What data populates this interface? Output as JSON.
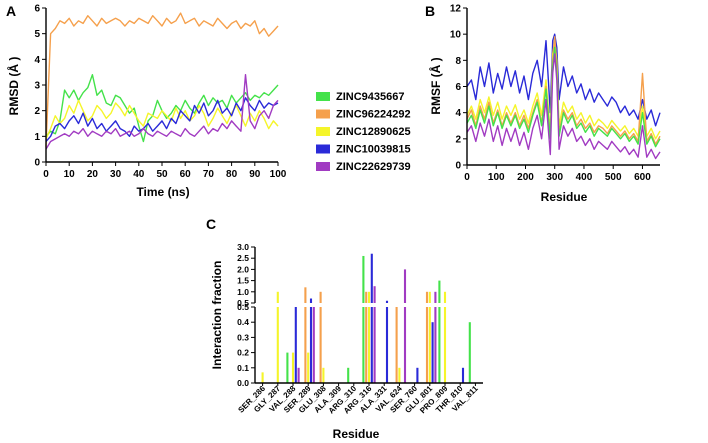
{
  "colors": {
    "ZINC9435667": "#44e24a",
    "ZINC96224292": "#f5a04c",
    "ZINC12890625": "#f5f52a",
    "ZINC10039815": "#2a2ad8",
    "ZINC22629739": "#a13bc2"
  },
  "chart_data": [
    {
      "panel": "A",
      "type": "line",
      "xlabel": "Time (ns)",
      "ylabel": "RMSD (Å )",
      "xlim": [
        0,
        100
      ],
      "ylim": [
        0,
        6
      ],
      "xticks": [
        0,
        10,
        20,
        30,
        40,
        50,
        60,
        70,
        80,
        90,
        100
      ],
      "yticks": [
        0,
        1,
        2,
        3,
        4,
        5,
        6
      ],
      "x": [
        0,
        2,
        4,
        6,
        8,
        10,
        12,
        14,
        16,
        18,
        20,
        22,
        24,
        26,
        28,
        30,
        32,
        34,
        36,
        38,
        40,
        42,
        44,
        46,
        48,
        50,
        52,
        54,
        56,
        58,
        60,
        62,
        64,
        66,
        68,
        70,
        72,
        74,
        76,
        78,
        80,
        82,
        84,
        86,
        88,
        90,
        92,
        94,
        96,
        98,
        100
      ],
      "series": [
        {
          "name": "ZINC96224292",
          "values": [
            0.6,
            5.0,
            5.2,
            5.5,
            5.4,
            5.6,
            5.3,
            5.5,
            5.4,
            5.7,
            5.5,
            5.3,
            5.6,
            5.4,
            5.5,
            5.6,
            5.5,
            5.3,
            5.5,
            5.4,
            5.6,
            5.5,
            5.4,
            5.7,
            5.5,
            5.3,
            5.6,
            5.4,
            5.5,
            5.8,
            5.4,
            5.5,
            5.6,
            5.3,
            5.5,
            5.4,
            5.3,
            5.6,
            5.4,
            5.2,
            5.4,
            5.5,
            5.2,
            5.4,
            5.3,
            5.5,
            5.0,
            5.2,
            4.9,
            5.1,
            5.3
          ]
        },
        {
          "name": "ZINC9435667",
          "values": [
            1.0,
            1.2,
            1.1,
            1.6,
            2.8,
            2.5,
            2.8,
            2.4,
            2.7,
            2.9,
            3.4,
            2.6,
            2.8,
            2.3,
            2.2,
            2.6,
            2.5,
            2.2,
            1.9,
            2.1,
            1.4,
            0.8,
            1.6,
            1.8,
            2.4,
            2.0,
            1.7,
            1.9,
            2.2,
            2.0,
            2.4,
            2.1,
            1.9,
            2.3,
            2.6,
            2.2,
            2.5,
            2.3,
            2.4,
            2.1,
            2.6,
            2.3,
            2.5,
            2.7,
            2.4,
            2.6,
            2.5,
            2.7,
            2.6,
            2.8,
            3.0
          ]
        },
        {
          "name": "ZINC12890625",
          "values": [
            0.9,
            1.3,
            1.8,
            1.5,
            1.7,
            2.2,
            1.9,
            2.4,
            2.0,
            1.6,
            1.8,
            2.2,
            2.0,
            1.7,
            1.9,
            2.3,
            2.1,
            1.8,
            2.2,
            1.9,
            1.6,
            1.4,
            1.9,
            1.8,
            1.7,
            2.0,
            1.8,
            1.6,
            2.1,
            1.7,
            2.0,
            1.6,
            1.8,
            2.2,
            1.9,
            1.4,
            1.7,
            2.1,
            1.8,
            1.5,
            1.9,
            2.2,
            1.8,
            1.4,
            1.9,
            1.6,
            2.0,
            1.7,
            1.3,
            1.6,
            1.4
          ]
        },
        {
          "name": "ZINC10039815",
          "values": [
            0.8,
            1.0,
            1.4,
            1.5,
            1.3,
            1.6,
            1.8,
            1.5,
            1.9,
            1.4,
            1.7,
            1.3,
            1.5,
            1.2,
            1.4,
            1.6,
            1.3,
            1.2,
            1.0,
            1.4,
            1.2,
            1.3,
            1.5,
            1.2,
            1.4,
            1.6,
            1.3,
            1.7,
            1.5,
            2.0,
            1.8,
            1.6,
            2.2,
            1.9,
            2.3,
            1.8,
            2.0,
            2.4,
            1.9,
            2.1,
            1.8,
            2.3,
            2.0,
            2.5,
            2.2,
            2.0,
            2.4,
            2.1,
            2.3,
            2.2,
            2.3
          ]
        },
        {
          "name": "ZINC22629739",
          "values": [
            0.5,
            0.8,
            0.9,
            1.0,
            1.1,
            1.0,
            1.2,
            1.1,
            1.3,
            1.0,
            1.2,
            1.1,
            1.0,
            1.2,
            1.1,
            1.3,
            1.0,
            1.1,
            1.2,
            1.0,
            1.1,
            1.3,
            1.1,
            1.0,
            1.2,
            1.1,
            1.0,
            1.2,
            1.1,
            1.0,
            1.3,
            1.1,
            1.0,
            1.2,
            1.4,
            1.1,
            1.3,
            1.2,
            1.5,
            1.3,
            1.6,
            1.4,
            1.2,
            3.4,
            1.6,
            1.3,
            1.8,
            2.0,
            1.7,
            2.2,
            2.4
          ]
        }
      ]
    },
    {
      "panel": "B",
      "type": "line",
      "xlabel": "Residue",
      "ylabel": "RMSF (Å )",
      "xlim": [
        0,
        660
      ],
      "ylim": [
        0,
        12
      ],
      "xticks": [
        0,
        100,
        200,
        300,
        400,
        500,
        600
      ],
      "yticks": [
        0,
        2,
        4,
        6,
        8,
        10,
        12
      ],
      "x": [
        0,
        15,
        30,
        45,
        60,
        75,
        90,
        105,
        120,
        135,
        150,
        165,
        180,
        195,
        210,
        225,
        240,
        255,
        270,
        285,
        293,
        300,
        307,
        315,
        330,
        345,
        360,
        375,
        390,
        405,
        420,
        435,
        450,
        465,
        480,
        495,
        510,
        525,
        540,
        555,
        570,
        585,
        600,
        615,
        630,
        645,
        660
      ],
      "series": [
        {
          "name": "ZINC10039815",
          "values": [
            6.0,
            6.5,
            5.0,
            7.5,
            6.0,
            7.8,
            5.5,
            7.0,
            5.8,
            7.5,
            6.0,
            7.2,
            5.5,
            6.8,
            5.0,
            7.0,
            8.0,
            6.0,
            9.5,
            4.0,
            9.5,
            10.0,
            9.0,
            5.0,
            7.5,
            6.0,
            6.8,
            5.5,
            6.2,
            5.0,
            5.8,
            4.8,
            5.5,
            5.0,
            4.5,
            5.2,
            4.8,
            4.0,
            4.5,
            3.8,
            4.2,
            3.5,
            5.0,
            3.5,
            4.2,
            3.0,
            4.0
          ]
        },
        {
          "name": "ZINC12890625",
          "values": [
            3.8,
            4.5,
            3.5,
            5.0,
            4.0,
            5.2,
            3.8,
            4.8,
            3.5,
            4.5,
            3.8,
            4.6,
            3.5,
            4.2,
            3.2,
            4.5,
            5.5,
            3.8,
            6.5,
            2.5,
            8.5,
            9.5,
            8.0,
            3.0,
            4.8,
            4.0,
            4.5,
            3.5,
            4.0,
            3.2,
            3.8,
            3.0,
            3.5,
            3.2,
            2.8,
            3.4,
            3.0,
            2.6,
            3.0,
            2.4,
            2.8,
            2.2,
            4.5,
            2.2,
            2.8,
            2.0,
            2.6
          ]
        },
        {
          "name": "ZINC96224292",
          "values": [
            3.5,
            4.2,
            3.0,
            4.5,
            3.5,
            4.8,
            3.2,
            4.2,
            3.0,
            4.0,
            3.2,
            4.0,
            3.0,
            3.8,
            2.8,
            4.0,
            5.0,
            3.2,
            6.0,
            2.2,
            8.0,
            9.8,
            7.5,
            2.5,
            4.2,
            3.5,
            4.0,
            3.0,
            3.5,
            2.8,
            3.2,
            2.5,
            3.0,
            2.8,
            2.4,
            3.0,
            2.6,
            2.2,
            2.6,
            2.0,
            2.4,
            1.8,
            7.0,
            1.8,
            2.4,
            1.6,
            2.2
          ]
        },
        {
          "name": "ZINC9435667",
          "values": [
            3.2,
            3.8,
            2.8,
            4.2,
            3.2,
            4.5,
            3.0,
            4.0,
            2.8,
            3.8,
            3.0,
            3.8,
            2.8,
            3.5,
            2.5,
            3.8,
            4.8,
            3.0,
            5.8,
            2.0,
            7.5,
            9.0,
            7.0,
            2.2,
            4.0,
            3.2,
            3.8,
            2.8,
            3.2,
            2.5,
            3.0,
            2.2,
            2.8,
            2.5,
            2.2,
            2.8,
            2.4,
            2.0,
            2.4,
            1.8,
            2.2,
            1.6,
            4.0,
            1.6,
            2.2,
            1.4,
            2.0
          ]
        },
        {
          "name": "ZINC22629739",
          "values": [
            2.5,
            3.0,
            1.8,
            3.2,
            2.2,
            3.5,
            1.8,
            3.0,
            1.5,
            2.8,
            1.8,
            2.8,
            1.5,
            2.5,
            1.2,
            2.8,
            3.8,
            2.0,
            5.0,
            0.8,
            7.0,
            8.5,
            6.5,
            1.2,
            3.0,
            2.2,
            2.8,
            1.8,
            2.2,
            1.5,
            2.0,
            1.2,
            1.8,
            1.5,
            1.2,
            1.8,
            1.4,
            1.0,
            1.4,
            0.8,
            1.2,
            0.6,
            3.0,
            0.6,
            1.2,
            0.5,
            1.0
          ]
        }
      ]
    },
    {
      "panel": "C",
      "type": "bar",
      "xlabel": "Residue",
      "ylabel": "Interaction fraction",
      "axis_break": "between 0.5 and 0.5 (broken y axis)",
      "yticks_upper": [
        0.5,
        1.0,
        1.5,
        2.0,
        2.5,
        3.0
      ],
      "yticks_lower": [
        0.0,
        0.1,
        0.2,
        0.3,
        0.4,
        0.5
      ],
      "categories": [
        "SER_286",
        "GLY_287",
        "VAL_288",
        "SER_289",
        "GLU_308",
        "ALA_309",
        "ARG_310",
        "ARG_316",
        "ALA_331",
        "VAL_624",
        "SER_760",
        "GLU_801",
        "PRO_809",
        "THR_810",
        "VAL_811"
      ],
      "series": [
        {
          "name": "ZINC9435667",
          "values": [
            0,
            0,
            0.2,
            0,
            0,
            0,
            0.1,
            2.6,
            0,
            0,
            0,
            0,
            1.5,
            0,
            0.4
          ]
        },
        {
          "name": "ZINC96224292",
          "values": [
            0,
            0,
            0,
            1.2,
            1.0,
            0,
            0,
            1.0,
            0,
            0.5,
            0,
            1.0,
            0,
            0,
            0
          ]
        },
        {
          "name": "ZINC12890625",
          "values": [
            0.07,
            1.0,
            0.2,
            0.2,
            0.1,
            0,
            0,
            1.0,
            0,
            0.1,
            0,
            1.0,
            1.0,
            0,
            0
          ]
        },
        {
          "name": "ZINC10039815",
          "values": [
            0,
            0,
            0.5,
            0.7,
            0,
            0,
            0,
            2.7,
            0.6,
            0,
            0.1,
            0.4,
            0,
            0.1,
            0
          ]
        },
        {
          "name": "ZINC22629739",
          "values": [
            0,
            0,
            0.1,
            0.5,
            0,
            0,
            0,
            1.25,
            0,
            2.0,
            0,
            1.0,
            0,
            0,
            0
          ]
        }
      ]
    }
  ],
  "legend": {
    "entries": [
      "ZINC9435667",
      "ZINC96224292",
      "ZINC12890625",
      "ZINC10039815",
      "ZINC22629739"
    ]
  }
}
